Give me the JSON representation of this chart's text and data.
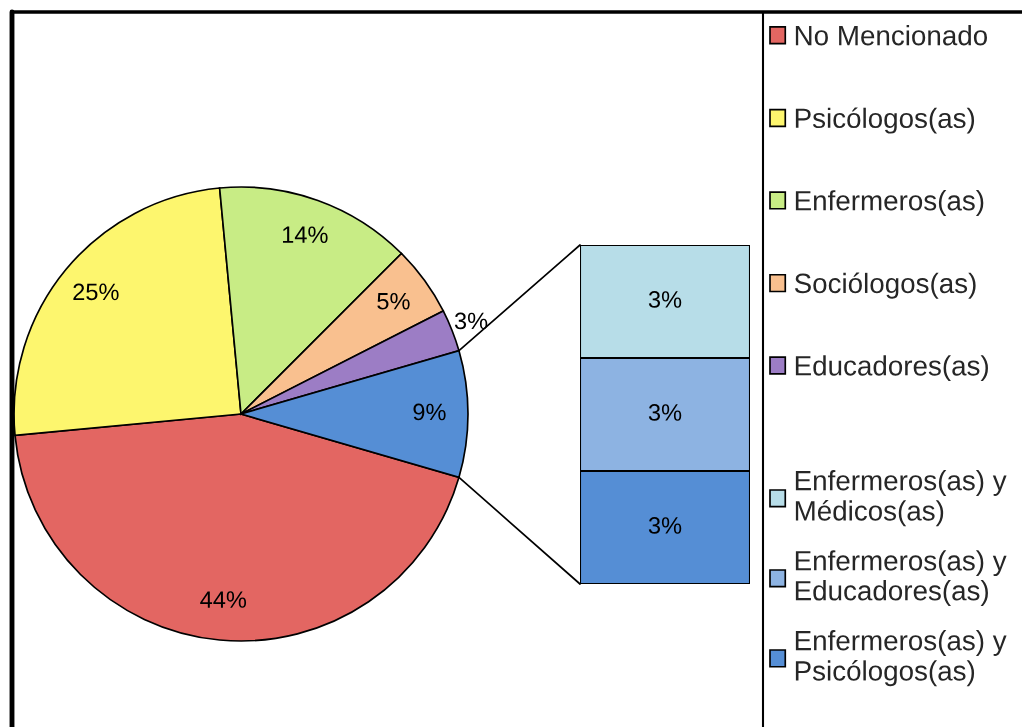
{
  "chart_data": [
    {
      "type": "pie",
      "categories": [
        "No Mencionado",
        "Psicólogos(as)",
        "Enfermeros(as)",
        "Sociólogos(as)",
        "Educadores(as)",
        null
      ],
      "values": [
        44,
        25,
        14,
        5,
        3,
        9
      ],
      "value_labels": [
        "44%",
        "25%",
        "14%",
        "5%",
        "3%",
        "9%"
      ],
      "colors": [
        "#e36662",
        "#fdf66e",
        "#c8ec85",
        "#f9c08f",
        "#9c7dc5",
        "#558ed5"
      ],
      "legend": "right"
    },
    {
      "type": "bar",
      "stacked": true,
      "categories": [
        null
      ],
      "series": [
        {
          "name": "Enfermeros(as) y Psicólogos(as)",
          "color": "#558ed5",
          "values": [
            3
          ],
          "value_labels": [
            "3%"
          ]
        },
        {
          "name": "Enfermeros(as) y Educadores(as)",
          "color": "#8db3e2",
          "values": [
            3
          ],
          "value_labels": [
            "3%"
          ]
        },
        {
          "name": "Enfermeros(as) y Médicos(as)",
          "color": "#b7dde8",
          "values": [
            3
          ],
          "value_labels": [
            "3%"
          ]
        }
      ],
      "tick_labels": false,
      "legend": "right"
    }
  ]
}
